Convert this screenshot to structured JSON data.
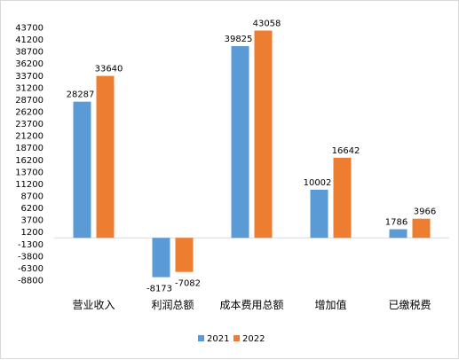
{
  "chart_data": {
    "type": "bar",
    "categories": [
      "营业收入",
      "利润总额",
      "成本费用总额",
      "增加值",
      "已缴税费"
    ],
    "series": [
      {
        "name": "2021",
        "values": [
          28287,
          -8173,
          39825,
          10002,
          1786
        ],
        "color": "#5b9bd5"
      },
      {
        "name": "2022",
        "values": [
          33640,
          -7082,
          43058,
          16642,
          3966
        ],
        "color": "#ed7d31"
      }
    ],
    "y_ticks": [
      43700,
      41200,
      38700,
      36200,
      33700,
      31200,
      28700,
      26200,
      23700,
      21200,
      18700,
      16200,
      13700,
      11200,
      8700,
      6200,
      3700,
      1200,
      -1300,
      -3800,
      -6300,
      -8800
    ],
    "ylim": [
      -8800,
      43700
    ],
    "title": "",
    "xlabel": "",
    "ylabel": "",
    "grid": false,
    "legend_position": "bottom"
  }
}
